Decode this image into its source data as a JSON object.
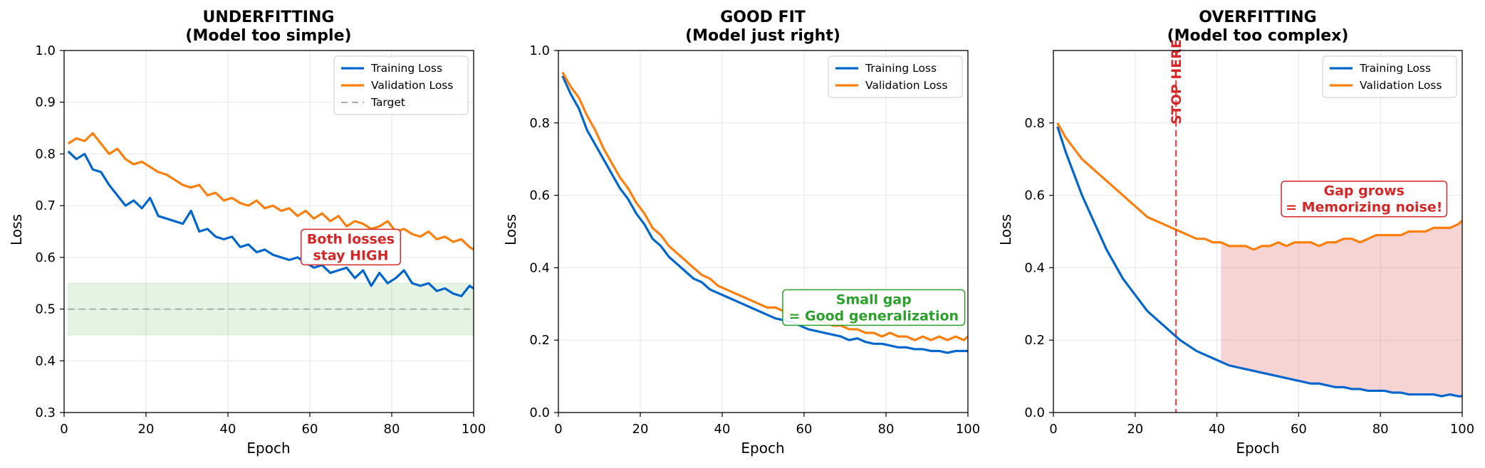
{
  "colors": {
    "training": "#0066cc",
    "validation": "#ff7f0e",
    "target": "#aaaaaa",
    "underfit": "#d62728",
    "goodfit": "#2ca02c",
    "overfit": "#d62728",
    "grid": "#e6e6e6"
  },
  "chart_data": [
    {
      "type": "line",
      "title": "UNDERFITTING",
      "subtitle": "(Model too simple)",
      "title_color": "#d62728",
      "xlabel": "Epoch",
      "ylabel": "Loss",
      "xlim": [
        0,
        100
      ],
      "ylim": [
        0.3,
        1.0
      ],
      "xticks": [
        0,
        20,
        40,
        60,
        80,
        100
      ],
      "yticks": [
        0.3,
        0.4,
        0.5,
        0.6,
        0.7,
        0.8,
        0.9,
        1.0
      ],
      "grid": true,
      "legend": "top-right",
      "series": [
        {
          "name": "Training Loss",
          "color": "#0066cc",
          "x": [
            1,
            3,
            5,
            7,
            9,
            11,
            13,
            15,
            17,
            19,
            21,
            23,
            25,
            27,
            29,
            31,
            33,
            35,
            37,
            39,
            41,
            43,
            45,
            47,
            49,
            51,
            53,
            55,
            57,
            59,
            61,
            63,
            65,
            67,
            69,
            71,
            73,
            75,
            77,
            79,
            81,
            83,
            85,
            87,
            89,
            91,
            93,
            95,
            97,
            99,
            100
          ],
          "y": [
            0.805,
            0.79,
            0.8,
            0.77,
            0.765,
            0.74,
            0.72,
            0.7,
            0.71,
            0.695,
            0.715,
            0.68,
            0.675,
            0.67,
            0.665,
            0.69,
            0.65,
            0.655,
            0.64,
            0.635,
            0.64,
            0.62,
            0.625,
            0.61,
            0.615,
            0.605,
            0.6,
            0.595,
            0.6,
            0.59,
            0.58,
            0.585,
            0.57,
            0.575,
            0.58,
            0.56,
            0.575,
            0.545,
            0.57,
            0.55,
            0.56,
            0.575,
            0.55,
            0.545,
            0.55,
            0.535,
            0.54,
            0.53,
            0.525,
            0.545,
            0.54
          ]
        },
        {
          "name": "Validation Loss",
          "color": "#ff7f0e",
          "x": [
            1,
            3,
            5,
            7,
            9,
            11,
            13,
            15,
            17,
            19,
            21,
            23,
            25,
            27,
            29,
            31,
            33,
            35,
            37,
            39,
            41,
            43,
            45,
            47,
            49,
            51,
            53,
            55,
            57,
            59,
            61,
            63,
            65,
            67,
            69,
            71,
            73,
            75,
            77,
            79,
            81,
            83,
            85,
            87,
            89,
            91,
            93,
            95,
            97,
            99,
            100
          ],
          "y": [
            0.82,
            0.83,
            0.825,
            0.84,
            0.82,
            0.8,
            0.81,
            0.79,
            0.78,
            0.785,
            0.775,
            0.765,
            0.76,
            0.75,
            0.74,
            0.735,
            0.74,
            0.72,
            0.725,
            0.71,
            0.715,
            0.705,
            0.7,
            0.71,
            0.695,
            0.7,
            0.69,
            0.695,
            0.68,
            0.69,
            0.675,
            0.685,
            0.67,
            0.68,
            0.66,
            0.67,
            0.665,
            0.655,
            0.66,
            0.67,
            0.65,
            0.655,
            0.645,
            0.64,
            0.65,
            0.635,
            0.64,
            0.63,
            0.635,
            0.62,
            0.615
          ]
        },
        {
          "name": "Target",
          "color": "#aaaaaa",
          "dashed": true,
          "x": [
            1,
            100
          ],
          "y": [
            0.5,
            0.5
          ]
        }
      ],
      "shaded_region": {
        "x": [
          1,
          100
        ],
        "y": [
          0.45,
          0.55
        ],
        "color": "#2ca02c",
        "opacity": 0.12
      },
      "annotation": {
        "text": [
          "Both losses",
          "stay HIGH"
        ],
        "x": 70,
        "y": 0.62,
        "color": "#d62728"
      }
    },
    {
      "type": "line",
      "title": "GOOD FIT",
      "subtitle": "(Model just right)",
      "title_color": "#2ca02c",
      "xlabel": "Epoch",
      "ylabel": "Loss",
      "xlim": [
        0,
        100
      ],
      "ylim": [
        0.0,
        1.0
      ],
      "xticks": [
        0,
        20,
        40,
        60,
        80,
        100
      ],
      "yticks": [
        0.0,
        0.2,
        0.4,
        0.6,
        0.8,
        1.0
      ],
      "grid": true,
      "legend": "top-right",
      "series": [
        {
          "name": "Training Loss",
          "color": "#0066cc",
          "x": [
            1,
            3,
            5,
            7,
            9,
            11,
            13,
            15,
            17,
            19,
            21,
            23,
            25,
            27,
            29,
            31,
            33,
            35,
            37,
            39,
            41,
            43,
            45,
            47,
            49,
            51,
            53,
            55,
            57,
            59,
            61,
            63,
            65,
            67,
            69,
            71,
            73,
            75,
            77,
            79,
            81,
            83,
            85,
            87,
            89,
            91,
            93,
            95,
            97,
            99,
            100
          ],
          "y": [
            0.93,
            0.88,
            0.84,
            0.78,
            0.74,
            0.7,
            0.66,
            0.62,
            0.59,
            0.55,
            0.52,
            0.48,
            0.46,
            0.43,
            0.41,
            0.39,
            0.37,
            0.36,
            0.34,
            0.33,
            0.32,
            0.31,
            0.3,
            0.29,
            0.28,
            0.27,
            0.26,
            0.255,
            0.25,
            0.24,
            0.23,
            0.225,
            0.22,
            0.215,
            0.21,
            0.2,
            0.205,
            0.195,
            0.19,
            0.19,
            0.185,
            0.18,
            0.18,
            0.175,
            0.175,
            0.17,
            0.17,
            0.165,
            0.17,
            0.17,
            0.17
          ]
        },
        {
          "name": "Validation Loss",
          "color": "#ff7f0e",
          "x": [
            1,
            3,
            5,
            7,
            9,
            11,
            13,
            15,
            17,
            19,
            21,
            23,
            25,
            27,
            29,
            31,
            33,
            35,
            37,
            39,
            41,
            43,
            45,
            47,
            49,
            51,
            53,
            55,
            57,
            59,
            61,
            63,
            65,
            67,
            69,
            71,
            73,
            75,
            77,
            79,
            81,
            83,
            85,
            87,
            89,
            91,
            93,
            95,
            97,
            99,
            100
          ],
          "y": [
            0.94,
            0.9,
            0.87,
            0.82,
            0.78,
            0.73,
            0.69,
            0.65,
            0.62,
            0.58,
            0.55,
            0.51,
            0.49,
            0.46,
            0.44,
            0.42,
            0.4,
            0.38,
            0.37,
            0.35,
            0.34,
            0.33,
            0.32,
            0.31,
            0.3,
            0.29,
            0.29,
            0.28,
            0.27,
            0.26,
            0.26,
            0.25,
            0.25,
            0.24,
            0.24,
            0.23,
            0.23,
            0.22,
            0.22,
            0.21,
            0.22,
            0.21,
            0.21,
            0.2,
            0.21,
            0.2,
            0.21,
            0.2,
            0.21,
            0.2,
            0.21
          ]
        }
      ],
      "annotation": {
        "text": [
          "Small gap",
          "= Good generalization"
        ],
        "x": 77,
        "y": 0.29,
        "color": "#2ca02c"
      }
    },
    {
      "type": "line",
      "title": "OVERFITTING",
      "subtitle": "(Model too complex)",
      "title_color": "#d62728",
      "xlabel": "Epoch",
      "ylabel": "Loss",
      "xlim": [
        0,
        100
      ],
      "ylim": [
        0.0,
        1.0
      ],
      "xticks": [
        0,
        20,
        40,
        60,
        80,
        100
      ],
      "yticks": [
        0.0,
        0.2,
        0.4,
        0.6,
        0.8
      ],
      "grid": true,
      "legend": "top-right",
      "series": [
        {
          "name": "Training Loss",
          "color": "#0066cc",
          "x": [
            1,
            3,
            5,
            7,
            9,
            11,
            13,
            15,
            17,
            19,
            21,
            23,
            25,
            27,
            29,
            31,
            33,
            35,
            37,
            39,
            41,
            43,
            45,
            47,
            49,
            51,
            53,
            55,
            57,
            59,
            61,
            63,
            65,
            67,
            69,
            71,
            73,
            75,
            77,
            79,
            81,
            83,
            85,
            87,
            89,
            91,
            93,
            95,
            97,
            99,
            100
          ],
          "y": [
            0.79,
            0.72,
            0.66,
            0.6,
            0.55,
            0.5,
            0.45,
            0.41,
            0.37,
            0.34,
            0.31,
            0.28,
            0.26,
            0.24,
            0.22,
            0.2,
            0.185,
            0.17,
            0.16,
            0.15,
            0.14,
            0.13,
            0.125,
            0.12,
            0.115,
            0.11,
            0.105,
            0.1,
            0.095,
            0.09,
            0.085,
            0.08,
            0.08,
            0.075,
            0.07,
            0.07,
            0.065,
            0.065,
            0.06,
            0.06,
            0.06,
            0.055,
            0.055,
            0.05,
            0.05,
            0.05,
            0.05,
            0.045,
            0.05,
            0.045,
            0.045
          ]
        },
        {
          "name": "Validation Loss",
          "color": "#ff7f0e",
          "x": [
            1,
            3,
            5,
            7,
            9,
            11,
            13,
            15,
            17,
            19,
            21,
            23,
            25,
            27,
            29,
            31,
            33,
            35,
            37,
            39,
            41,
            43,
            45,
            47,
            49,
            51,
            53,
            55,
            57,
            59,
            61,
            63,
            65,
            67,
            69,
            71,
            73,
            75,
            77,
            79,
            81,
            83,
            85,
            87,
            89,
            91,
            93,
            95,
            97,
            99,
            100
          ],
          "y": [
            0.8,
            0.76,
            0.73,
            0.7,
            0.68,
            0.66,
            0.64,
            0.62,
            0.6,
            0.58,
            0.56,
            0.54,
            0.53,
            0.52,
            0.51,
            0.5,
            0.49,
            0.48,
            0.48,
            0.47,
            0.47,
            0.46,
            0.46,
            0.46,
            0.45,
            0.46,
            0.46,
            0.47,
            0.46,
            0.47,
            0.47,
            0.47,
            0.46,
            0.47,
            0.47,
            0.48,
            0.48,
            0.47,
            0.48,
            0.49,
            0.49,
            0.49,
            0.49,
            0.5,
            0.5,
            0.5,
            0.51,
            0.51,
            0.51,
            0.52,
            0.53
          ]
        }
      ],
      "vline": {
        "x": 30,
        "color": "#d62728",
        "label": "STOP HERE"
      },
      "gap_fill_from_x": 41,
      "annotation": {
        "text": [
          "Gap grows",
          "= Memorizing noise!"
        ],
        "x": 76,
        "y": 0.59,
        "color": "#d62728"
      }
    }
  ]
}
